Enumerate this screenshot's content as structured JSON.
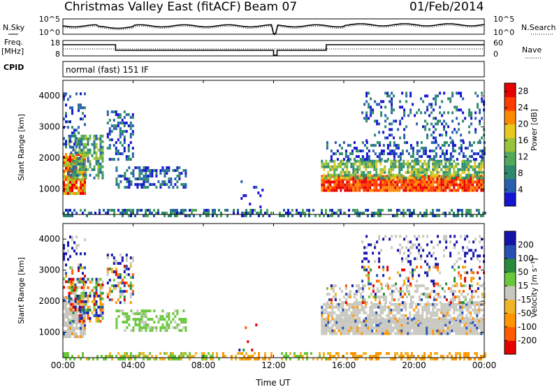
{
  "header": {
    "site": "Christmas Valley East (fitACF)",
    "beam": "Beam 07",
    "date": "01/Feb/2014",
    "mode": "normal (fast) 151 IF"
  },
  "side_labels": {
    "nsky": "N.Sky",
    "nsearch": "N.Search",
    "freq": "Freq.",
    "freq_unit": "[MHz]",
    "nave": "Nave",
    "cpid": "CPID"
  },
  "noise_panel": {
    "left_ticks": [
      "10^5",
      "10^0"
    ],
    "right_ticks": [
      "10^5",
      "10^0"
    ]
  },
  "freq_panel": {
    "left_ticks": [
      "18",
      "8"
    ],
    "right_ticks": [
      "60",
      "0"
    ]
  },
  "chart_data": [
    {
      "type": "heatmap",
      "name": "power-panel",
      "ylabel": "Slant Range [km]",
      "y_ticks": [
        "1000",
        "2000",
        "3000",
        "4000"
      ],
      "y_tick_values": [
        1000,
        2000,
        3000,
        4000
      ],
      "ylim": [
        180,
        4500
      ],
      "colorbar": {
        "label": "Power [dB]",
        "ticks": [
          "4",
          "8",
          "12",
          "16",
          "20",
          "24",
          "28"
        ],
        "range": [
          0,
          30
        ],
        "colors": [
          "#1414d2",
          "#2860b0",
          "#2e8a6e",
          "#52a85a",
          "#9ac23a",
          "#e6c81e",
          "#ff8a00",
          "#ff3c00",
          "#e60000"
        ]
      }
    },
    {
      "type": "heatmap",
      "name": "velocity-panel",
      "ylabel": "Slant Range [km]",
      "y_ticks": [
        "1000",
        "2000",
        "3000",
        "4000"
      ],
      "y_tick_values": [
        1000,
        2000,
        3000,
        4000
      ],
      "ylim": [
        180,
        4500
      ],
      "colorbar": {
        "label": "Velocity [m s⁻¹]",
        "ticks": [
          "-200",
          "-100",
          "-50",
          "-15",
          "15",
          "50",
          "100",
          "200"
        ],
        "range": [
          -250,
          250
        ],
        "colors": [
          "#e60000",
          "#ff5a00",
          "#ff9600",
          "#f0b428",
          "#c8c8c0",
          "#6ac83c",
          "#2a8a3c",
          "#2850b4",
          "#1414aa"
        ]
      }
    }
  ],
  "x_axis": {
    "label": "Time UT",
    "ticks": [
      "00:00",
      "04:00",
      "08:00",
      "12:00",
      "16:00",
      "20:00",
      "00:00"
    ],
    "tick_hours": [
      0,
      4,
      8,
      12,
      16,
      20,
      24
    ]
  }
}
